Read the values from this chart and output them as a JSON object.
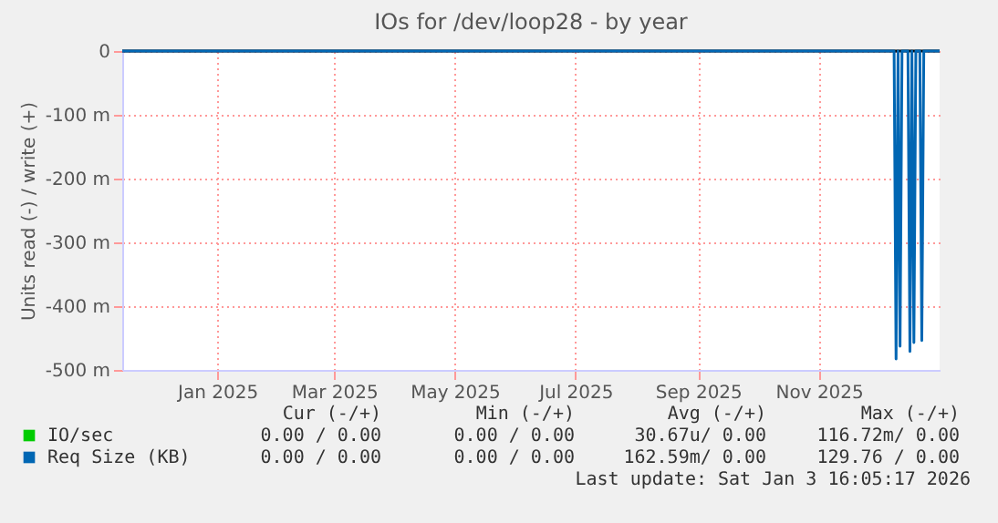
{
  "chart_data": {
    "type": "line",
    "title": "IOs for /dev/loop28 - by year",
    "ylabel": "Units read (-) / write (+)",
    "xlim": [
      "2024-11-14",
      "2026-01-01"
    ],
    "xticks": [
      {
        "value": "2025-01-01",
        "label": "Jan 2025"
      },
      {
        "value": "2025-03-01",
        "label": "Mar 2025"
      },
      {
        "value": "2025-05-01",
        "label": "May 2025"
      },
      {
        "value": "2025-07-01",
        "label": "Jul 2025"
      },
      {
        "value": "2025-09-01",
        "label": "Sep 2025"
      },
      {
        "value": "2025-11-01",
        "label": "Nov 2025"
      }
    ],
    "ylim": [
      -500,
      0
    ],
    "yticks": [
      {
        "value": 0,
        "label": "0"
      },
      {
        "value": -100,
        "label": "-100 m"
      },
      {
        "value": -200,
        "label": "-200 m"
      },
      {
        "value": -300,
        "label": "-300 m"
      },
      {
        "value": -400,
        "label": "-400 m"
      },
      {
        "value": -500,
        "label": "-500 m"
      }
    ],
    "grid": true,
    "legend": "bottom",
    "ref_lines": [
      {
        "axis": "y",
        "value": 0,
        "color": "#000000"
      }
    ],
    "series": [
      {
        "name": "IO/sec",
        "color": "#00cc00",
        "values": [
          null
        ]
      },
      {
        "name": "Req Size (KB)",
        "color": "#0066b3",
        "x": [
          "2024-11-14",
          "2025-12-09",
          "2025-12-10",
          "2025-12-11",
          "2025-12-12",
          "2025-12-13",
          "2025-12-16",
          "2025-12-17",
          "2025-12-18",
          "2025-12-19",
          "2025-12-20",
          "2025-12-22",
          "2025-12-23",
          "2025-12-24",
          "2026-01-01"
        ],
        "values": [
          0,
          0,
          -483,
          0,
          -463,
          0,
          0,
          -471,
          0,
          -457,
          0,
          0,
          -454,
          0,
          0
        ]
      }
    ],
    "annotations": [
      "Cur (-/+)",
      "Min (-/+)",
      "Avg (-/+)",
      "Max (-/+)",
      "0.00 /  0.00",
      "0.00 /  0.00",
      "30.67u/  0.00",
      "116.72m/  0.00",
      "0.00 /  0.00",
      "0.00 /  0.00",
      "162.59m/  0.00",
      "129.76 /  0.00",
      "Last update: Sat Jan  3 16:05:17 2026"
    ]
  }
}
